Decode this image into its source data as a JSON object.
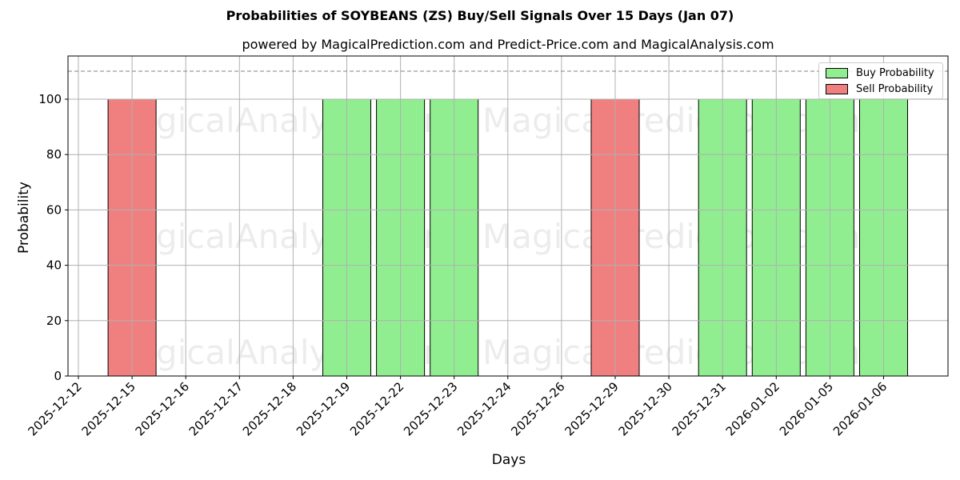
{
  "header": {
    "title": "Probabilities of SOYBEANS (ZS) Buy/Sell Signals Over 15 Days (Jan 07)",
    "subtitle": "powered by MagicalPrediction.com and Predict-Price.com and MagicalAnalysis.com"
  },
  "legend": {
    "buy_label": "Buy Probability",
    "sell_label": "Sell Probability"
  },
  "axes": {
    "xlabel": "Days",
    "ylabel": "Probability",
    "yticks": [
      "0",
      "20",
      "40",
      "60",
      "80",
      "100"
    ],
    "xticks": [
      "2025-12-12",
      "2025-12-15",
      "2025-12-16",
      "2025-12-17",
      "2025-12-18",
      "2025-12-19",
      "2025-12-22",
      "2025-12-23",
      "2025-12-24",
      "2025-12-26",
      "2025-12-29",
      "2025-12-30",
      "2025-12-31",
      "2026-01-02",
      "2026-01-05",
      "2026-01-06"
    ]
  },
  "watermarks": [
    "MagicalAnalysis.com",
    "MagicalPrediction.com"
  ],
  "colors": {
    "buy": "#90ee90",
    "sell": "#f08080",
    "grid": "#b0b0b0",
    "threshold": "#808080"
  },
  "chart_data": {
    "type": "bar",
    "title": "Probabilities of SOYBEANS (ZS) Buy/Sell Signals Over 15 Days (Jan 07)",
    "subtitle": "powered by MagicalPrediction.com and Predict-Price.com and MagicalAnalysis.com",
    "xlabel": "Days",
    "ylabel": "Probability",
    "ylim": [
      0,
      115
    ],
    "grid": true,
    "legend_position": "upper right",
    "threshold_line": 110,
    "categories": [
      "2025-12-12",
      "2025-12-15",
      "2025-12-16",
      "2025-12-17",
      "2025-12-18",
      "2025-12-19",
      "2025-12-22",
      "2025-12-23",
      "2025-12-24",
      "2025-12-26",
      "2025-12-29",
      "2025-12-30",
      "2025-12-31",
      "2026-01-02",
      "2026-01-05",
      "2026-01-06"
    ],
    "series": [
      {
        "name": "Buy Probability",
        "color": "#90ee90",
        "values": [
          0,
          0,
          0,
          0,
          0,
          100,
          100,
          100,
          0,
          0,
          0,
          0,
          100,
          100,
          100,
          100
        ]
      },
      {
        "name": "Sell Probability",
        "color": "#f08080",
        "values": [
          0,
          100,
          0,
          0,
          0,
          0,
          0,
          0,
          0,
          0,
          100,
          0,
          0,
          0,
          0,
          0
        ]
      }
    ]
  }
}
